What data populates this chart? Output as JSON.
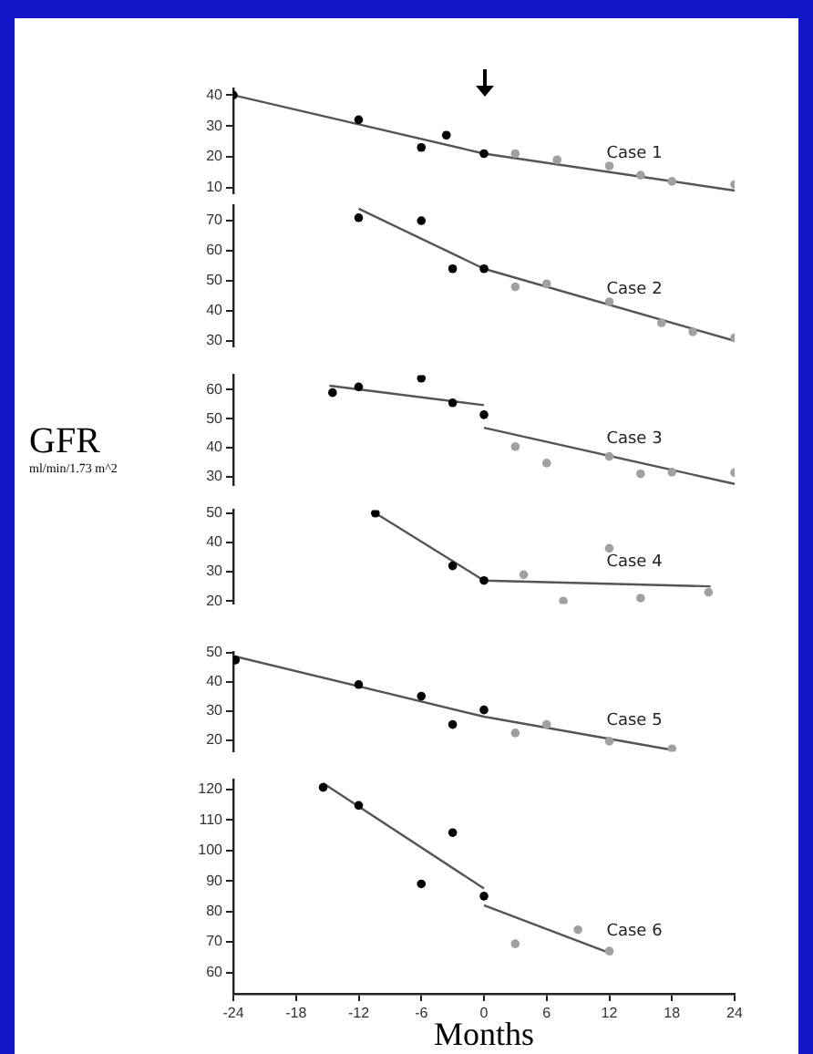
{
  "chart_data": [
    {
      "type": "scatter",
      "tick_labels": "y",
      "xlim": [
        -24,
        24
      ],
      "ylim": [
        8,
        42
      ],
      "yticks": [
        10,
        20,
        30,
        40
      ],
      "series": [
        {
          "marker": "circle",
          "color": "#000000",
          "x": [
            -24,
            -12,
            -6,
            -3.6,
            0
          ],
          "values": [
            40,
            32,
            23,
            27,
            21
          ]
        },
        {
          "marker": "circle",
          "color": "#a0a0a0",
          "x": [
            3,
            7,
            12,
            15,
            18,
            24
          ],
          "values": [
            21,
            19,
            17,
            14,
            12,
            11
          ]
        },
        {
          "type": "line",
          "name": "Case 1",
          "color": "#555555",
          "x": [
            -24,
            0,
            24
          ],
          "values": [
            40,
            21,
            9
          ]
        }
      ]
    },
    {
      "type": "scatter",
      "tick_labels": "y",
      "xlim": [
        -24,
        24
      ],
      "ylim": [
        28,
        75
      ],
      "yticks": [
        30,
        40,
        50,
        60,
        70
      ],
      "series": [
        {
          "marker": "circle",
          "color": "#000000",
          "x": [
            -12,
            -6,
            -3,
            0
          ],
          "values": [
            71,
            70,
            54,
            54
          ]
        },
        {
          "marker": "circle",
          "color": "#a0a0a0",
          "x": [
            3,
            6,
            12,
            17,
            20,
            24
          ],
          "values": [
            48,
            49,
            43,
            36,
            33,
            31
          ]
        },
        {
          "type": "line",
          "name": "Case 2",
          "color": "#555555",
          "x": [
            -12,
            0,
            24
          ],
          "values": [
            74,
            54,
            30
          ]
        }
      ]
    },
    {
      "type": "scatter",
      "tick_labels": "y",
      "xlim": [
        -24,
        24
      ],
      "ylim": [
        27,
        65
      ],
      "yticks": [
        30,
        40,
        50,
        60
      ],
      "ylabel": "GFR",
      "annotations": [
        "ml/min/1.73 m^2"
      ],
      "series": [
        {
          "marker": "circle",
          "color": "#000000",
          "x": [
            -14.5,
            -12,
            -6,
            -3,
            0
          ],
          "values": [
            59,
            61,
            64,
            55.5,
            51.4
          ]
        },
        {
          "marker": "circle",
          "color": "#a0a0a0",
          "x": [
            3,
            6,
            12,
            15,
            18,
            24
          ],
          "values": [
            40.4,
            34.7,
            37,
            31,
            31.6,
            31.4
          ]
        },
        {
          "type": "line",
          "color": "#555555",
          "x": [
            -14.8,
            0
          ],
          "values": [
            61.4,
            54.7
          ]
        },
        {
          "type": "line",
          "name": "Case 3",
          "color": "#555555",
          "x": [
            0,
            24
          ],
          "values": [
            46.9,
            27.5
          ]
        }
      ]
    },
    {
      "type": "scatter",
      "tick_labels": "y",
      "xlim": [
        -24,
        24
      ],
      "ylim": [
        19,
        51
      ],
      "yticks": [
        20,
        30,
        40,
        50
      ],
      "series": [
        {
          "marker": "circle",
          "color": "#000000",
          "x": [
            -10.4,
            -3,
            0
          ],
          "values": [
            50,
            32,
            27
          ]
        },
        {
          "marker": "circle",
          "color": "#a0a0a0",
          "x": [
            3.8,
            7.6,
            12,
            15,
            21.5
          ],
          "values": [
            29,
            20,
            38,
            21,
            23
          ]
        },
        {
          "type": "line",
          "name": "Case 4",
          "color": "#555555",
          "x": [
            -10.4,
            0,
            21.7
          ],
          "values": [
            50,
            27,
            25
          ]
        }
      ]
    },
    {
      "type": "scatter",
      "tick_labels": "y",
      "xlim": [
        -24,
        24
      ],
      "ylim": [
        16,
        50
      ],
      "yticks": [
        20,
        30,
        40,
        50
      ],
      "series": [
        {
          "marker": "circle",
          "color": "#000000",
          "x": [
            -23.8,
            -12,
            -6,
            -3,
            0
          ],
          "values": [
            47.4,
            39,
            35,
            25.3,
            30.3
          ]
        },
        {
          "marker": "circle",
          "color": "#a0a0a0",
          "x": [
            3,
            6,
            12,
            18
          ],
          "values": [
            22.4,
            25.3,
            19.6,
            17
          ]
        },
        {
          "type": "line",
          "name": "Case 5",
          "color": "#555555",
          "x": [
            -24,
            0,
            18
          ],
          "values": [
            48.8,
            28,
            16.6
          ]
        }
      ]
    },
    {
      "type": "scatter",
      "xlim": [
        -24,
        24
      ],
      "ylim": [
        53,
        123
      ],
      "yticks": [
        60,
        70,
        80,
        90,
        100,
        110,
        120
      ],
      "xticks": [
        -24,
        -18,
        -12,
        -6,
        0,
        6,
        12,
        18,
        24
      ],
      "xlabel": "Months",
      "series": [
        {
          "marker": "circle",
          "color": "#000000",
          "x": [
            -15.4,
            -12,
            -6,
            -3,
            0
          ],
          "values": [
            120.6,
            114.7,
            89,
            105.8,
            85
          ]
        },
        {
          "marker": "circle",
          "color": "#a0a0a0",
          "x": [
            3,
            9,
            12
          ],
          "values": [
            69.4,
            74,
            67
          ]
        },
        {
          "type": "line",
          "color": "#555555",
          "x": [
            -15.4,
            0
          ],
          "values": [
            122,
            87.5
          ]
        },
        {
          "type": "line",
          "name": "Case 6",
          "color": "#555555",
          "x": [
            0,
            12.3
          ],
          "values": [
            82,
            66
          ]
        }
      ]
    }
  ]
}
